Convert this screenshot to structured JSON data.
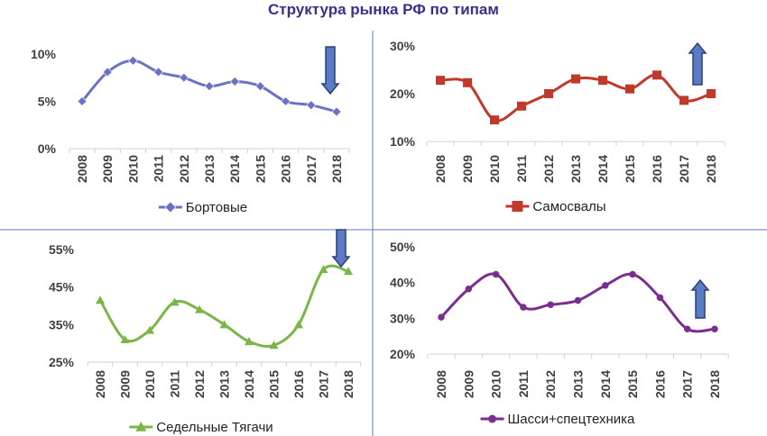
{
  "title": "Структура рынка РФ по типам",
  "colors": {
    "title": "#3c2f8a",
    "divider": "#5b7fbf",
    "arrow_fill": "#5b7bc4",
    "arrow_stroke": "#2a3f7a"
  },
  "chart_data": [
    {
      "type": "line",
      "smooth": true,
      "name": "Бортовые",
      "legend": "Бортовые",
      "marker": "diamond",
      "color": "#6a72c4",
      "x": [
        "2008",
        "2009",
        "2010",
        "2011",
        "2012",
        "2013",
        "2014",
        "2015",
        "2016",
        "2017",
        "2018"
      ],
      "values": [
        5.0,
        8.1,
        9.3,
        8.1,
        7.5,
        6.6,
        7.1,
        6.6,
        5.0,
        4.6,
        3.9
      ],
      "yticks": [
        "0%",
        "5%",
        "10%"
      ],
      "ylim": [
        0,
        10
      ],
      "grid": false,
      "legend_position": "bottom",
      "trend_arrow": "down"
    },
    {
      "type": "line",
      "smooth": true,
      "name": "Самосвалы",
      "legend": "Самосвалы",
      "marker": "square",
      "color": "#c0392b",
      "x": [
        "2008",
        "2009",
        "2010",
        "2011",
        "2012",
        "2013",
        "2014",
        "2015",
        "2016",
        "2017",
        "2018"
      ],
      "values": [
        22.8,
        22.3,
        14.5,
        17.4,
        20.0,
        23.1,
        22.8,
        21.0,
        23.9,
        18.6,
        20.0
      ],
      "yticks": [
        "10%",
        "20%",
        "30%"
      ],
      "ylim": [
        10,
        30
      ],
      "grid": false,
      "legend_position": "bottom",
      "trend_arrow": "up"
    },
    {
      "type": "line",
      "smooth": true,
      "name": "Седельные Тягачи",
      "legend": "Седельные Тягачи",
      "marker": "triangle",
      "color": "#7ab648",
      "x": [
        "2008",
        "2009",
        "2010",
        "2011",
        "2012",
        "2013",
        "2014",
        "2015",
        "2016",
        "2017",
        "2018"
      ],
      "values": [
        41.5,
        31.0,
        33.5,
        41.0,
        39.0,
        35.0,
        30.5,
        29.5,
        35.0,
        49.7,
        49.2
      ],
      "yticks": [
        "25%",
        "35%",
        "45%",
        "55%"
      ],
      "ylim": [
        25,
        55
      ],
      "grid": false,
      "legend_position": "bottom",
      "trend_arrow": "down"
    },
    {
      "type": "line",
      "smooth": true,
      "name": "Шасси+спецтехника",
      "legend": "Шасси+спецтехника",
      "marker": "circle",
      "color": "#7a2f8f",
      "x": [
        "2008",
        "2009",
        "2010",
        "2011",
        "2012",
        "2013",
        "2014",
        "2015",
        "2016",
        "2017",
        "2018"
      ],
      "values": [
        30.3,
        38.2,
        42.3,
        33.1,
        33.8,
        35.0,
        39.2,
        42.3,
        35.8,
        27.0,
        27.0
      ],
      "yticks": [
        "20%",
        "30%",
        "40%",
        "50%"
      ],
      "ylim": [
        20,
        50
      ],
      "grid": false,
      "legend_position": "bottom",
      "trend_arrow": "up"
    }
  ]
}
